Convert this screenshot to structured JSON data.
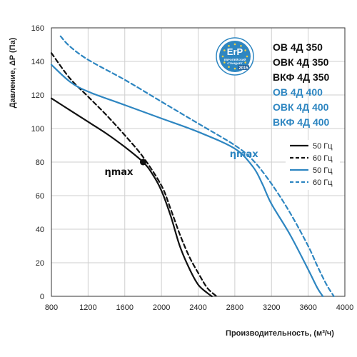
{
  "chart_data": {
    "type": "line",
    "xlabel": "Производительность, (м³/ч)",
    "ylabel": "Давление, ΔP (Па)",
    "xlim": [
      800,
      4000
    ],
    "ylim": [
      0,
      160
    ],
    "xticks": [
      800,
      1200,
      1600,
      2000,
      2400,
      2800,
      3200,
      3600,
      4000
    ],
    "yticks": [
      0,
      20,
      40,
      60,
      80,
      100,
      120,
      140,
      160
    ],
    "grid": true,
    "legend_position": "right",
    "legend": [
      {
        "label": "50 Гц",
        "color": "#111111",
        "dash": false
      },
      {
        "label": "60 Гц",
        "color": "#111111",
        "dash": true
      },
      {
        "label": "50 Гц",
        "color": "#2e86c1",
        "dash": false
      },
      {
        "label": "60 Гц",
        "color": "#2e86c1",
        "dash": true
      }
    ],
    "series": [
      {
        "model": "ОВ 4Д 350",
        "frequency": "50 Гц",
        "color": "#111111",
        "dash": false,
        "x": [
          800,
          1000,
          1200,
          1400,
          1600,
          1800,
          1900,
          2000,
          2100,
          2200,
          2300,
          2400,
          2500,
          2550
        ],
        "y": [
          118,
          111,
          104,
          97,
          89,
          80,
          73,
          63,
          48,
          30,
          17,
          7,
          2,
          0
        ]
      },
      {
        "model": "ОВ 4Д 350",
        "frequency": "60 Гц",
        "color": "#111111",
        "dash": true,
        "x": [
          800,
          1000,
          1200,
          1400,
          1600,
          1800,
          2000,
          2100,
          2200,
          2300,
          2400,
          2500,
          2600
        ],
        "y": [
          145,
          130,
          119,
          108,
          96,
          83,
          66,
          52,
          37,
          24,
          14,
          5,
          0
        ]
      },
      {
        "model": "ОВ 4Д 400",
        "frequency": "50 Гц",
        "color": "#2e86c1",
        "dash": false,
        "x": [
          800,
          1000,
          1200,
          1600,
          2000,
          2400,
          2800,
          3000,
          3100,
          3200,
          3400,
          3600,
          3700,
          3760
        ],
        "y": [
          138,
          128,
          122,
          114,
          106,
          98,
          88,
          77,
          67,
          55,
          37,
          16,
          5,
          0
        ]
      },
      {
        "model": "ОВ 4Д 400",
        "frequency": "60 Гц",
        "color": "#2e86c1",
        "dash": true,
        "x": [
          900,
          1000,
          1200,
          1600,
          2000,
          2400,
          2800,
          3000,
          3200,
          3400,
          3600,
          3700,
          3800,
          3880
        ],
        "y": [
          155,
          149,
          141,
          129,
          116,
          103,
          90,
          81,
          67,
          50,
          30,
          18,
          7,
          0
        ]
      }
    ],
    "annotations": [
      {
        "text": "ηmax",
        "x": 1800,
        "y": 80,
        "color": "#111111",
        "marker": true
      },
      {
        "text": "ηmax",
        "x": 2900,
        "y": 83,
        "color": "#2e86c1",
        "marker": false
      }
    ]
  },
  "models": [
    {
      "name": "ОВ 4Д 350",
      "color": "#111111"
    },
    {
      "name": "ОВК 4Д 350",
      "color": "#111111"
    },
    {
      "name": "ВКФ 4Д 350",
      "color": "#111111"
    },
    {
      "name": "ОВ 4Д 400",
      "color": "#2e86c1"
    },
    {
      "name": "ОВК 4Д 400",
      "color": "#2e86c1"
    },
    {
      "name": "ВКФ 4Д 400",
      "color": "#2e86c1"
    }
  ],
  "badge": {
    "title": "ErP",
    "subtitle_line1": "ЕВРОПЕЙСКИЙ",
    "subtitle_line2": "СТАНДАРТ",
    "year": "2015",
    "color": "#2e86c1"
  }
}
